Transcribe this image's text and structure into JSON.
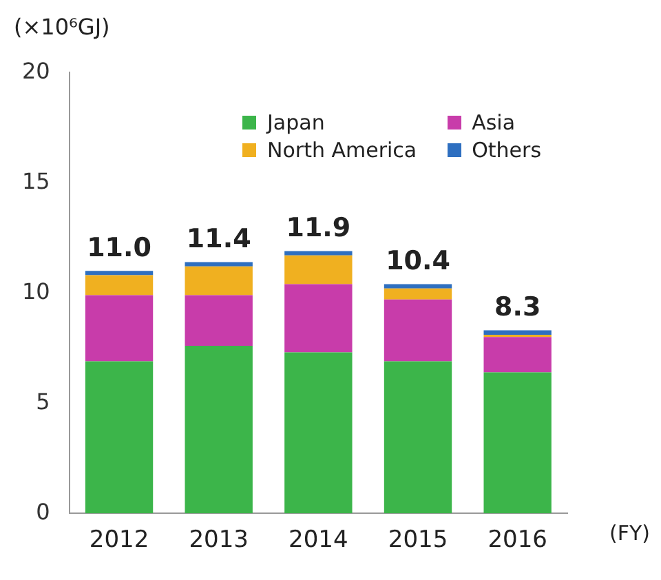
{
  "chart_data": {
    "type": "bar",
    "stacked": true,
    "ylabel": "(×10⁶GJ)",
    "xlabel": "(FY)",
    "categories": [
      "2012",
      "2013",
      "2014",
      "2015",
      "2016"
    ],
    "series": [
      {
        "name": "Japan",
        "color": "#3cb54a",
        "values": [
          6.9,
          7.6,
          7.3,
          6.9,
          6.4
        ]
      },
      {
        "name": "Asia",
        "color": "#c83caa",
        "values": [
          3.0,
          2.3,
          3.1,
          2.8,
          1.6
        ]
      },
      {
        "name": "North America",
        "color": "#f0b020",
        "values": [
          0.9,
          1.3,
          1.3,
          0.5,
          0.1
        ]
      },
      {
        "name": "Others",
        "color": "#2e6fc0",
        "values": [
          0.2,
          0.2,
          0.2,
          0.2,
          0.2
        ]
      }
    ],
    "totals": [
      "11.0",
      "11.4",
      "11.9",
      "10.4",
      "8.3"
    ],
    "ylim": [
      0,
      20
    ],
    "yticks": [
      0,
      5,
      10,
      15,
      20
    ],
    "grid": false,
    "legend": "top"
  }
}
